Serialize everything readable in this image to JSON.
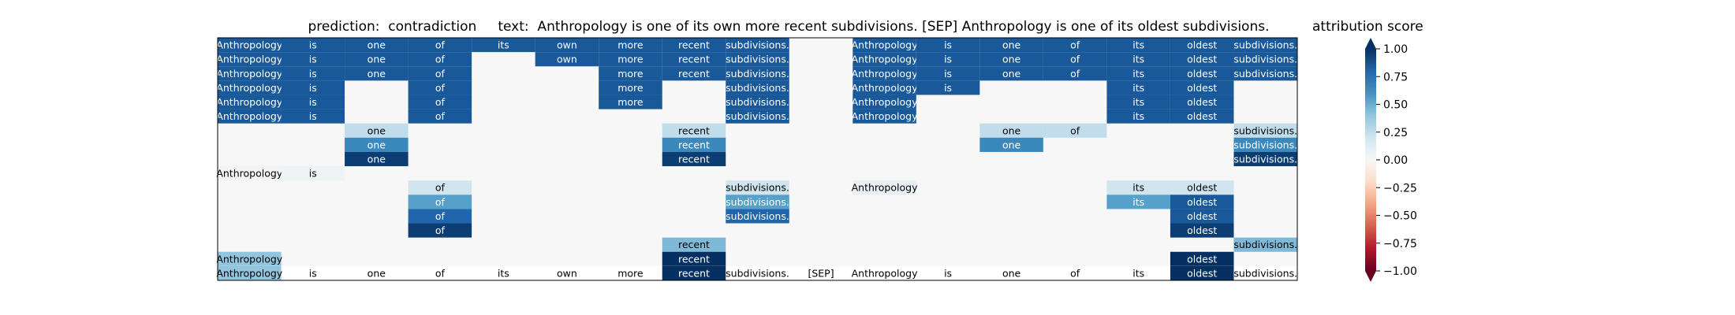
{
  "title": "prediction:  contradiction     text:  Anthropology is one of its own more recent subdivisions. [SEP] Anthropology is one of its oldest subdivisions.",
  "colorbar_title": "attribution score",
  "chart_data": {
    "type": "heatmap",
    "tokens": [
      "Anthropology",
      "is",
      "one",
      "of",
      "its",
      "own",
      "more",
      "recent",
      "subdivisions.",
      "[SEP]",
      "Anthropology",
      "is",
      "one",
      "of",
      "its",
      "oldest",
      "subdivisions."
    ],
    "colorbar": {
      "range": [
        -1.0,
        1.0
      ],
      "ticks": [
        "1.00",
        "0.75",
        "0.50",
        "0.25",
        "0.00",
        "−0.25",
        "−0.50",
        "−0.75",
        "−1.00"
      ],
      "colormap": "RdBu"
    },
    "rows": [
      {
        "0": 0.85,
        "1": 0.85,
        "2": 0.85,
        "3": 0.85,
        "4": 0.85,
        "5": 0.85,
        "6": 0.85,
        "7": 0.85,
        "8": 0.85,
        "10": 0.85,
        "11": 0.85,
        "12": 0.85,
        "13": 0.85,
        "14": 0.85,
        "15": 0.85,
        "16": 0.85
      },
      {
        "0": 0.85,
        "1": 0.85,
        "2": 0.85,
        "3": 0.85,
        "5": 0.85,
        "6": 0.85,
        "7": 0.85,
        "8": 0.85,
        "10": 0.85,
        "11": 0.85,
        "12": 0.85,
        "13": 0.85,
        "14": 0.85,
        "15": 0.85,
        "16": 0.85
      },
      {
        "0": 0.85,
        "1": 0.85,
        "2": 0.85,
        "3": 0.85,
        "6": 0.85,
        "7": 0.85,
        "8": 0.85,
        "10": 0.85,
        "11": 0.85,
        "12": 0.85,
        "13": 0.85,
        "14": 0.85,
        "15": 0.85,
        "16": 0.85
      },
      {
        "0": 0.85,
        "1": 0.85,
        "3": 0.85,
        "6": 0.85,
        "8": 0.85,
        "10": 0.85,
        "11": 0.85,
        "14": 0.85,
        "15": 0.85
      },
      {
        "0": 0.85,
        "1": 0.85,
        "3": 0.85,
        "6": 0.85,
        "8": 0.85,
        "10": 0.85,
        "14": 0.85,
        "15": 0.85
      },
      {
        "0": 0.85,
        "1": 0.85,
        "3": 0.85,
        "8": 0.85,
        "10": 0.85,
        "14": 0.85,
        "15": 0.85
      },
      {
        "2": 0.25,
        "7": 0.25,
        "12": 0.25,
        "13": 0.25,
        "16": 0.25
      },
      {
        "2": 0.65,
        "7": 0.65,
        "12": 0.65,
        "16": 0.65
      },
      {
        "2": 0.95,
        "7": 0.95,
        "16": 0.95
      },
      {
        "0": 0.03,
        "1": 0.05
      },
      {
        "3": 0.2,
        "8": 0.2,
        "10": 0.08,
        "14": 0.2,
        "15": 0.2
      },
      {
        "3": 0.55,
        "8": 0.55,
        "14": 0.55,
        "15": 0.85
      },
      {
        "3": 0.8,
        "8": 0.8,
        "15": 0.85
      },
      {
        "3": 0.95,
        "15": 0.95
      },
      {
        "7": 0.45,
        "16": 0.45
      },
      {
        "0": 0.4,
        "7": 1.0,
        "15": 1.0
      }
    ]
  }
}
